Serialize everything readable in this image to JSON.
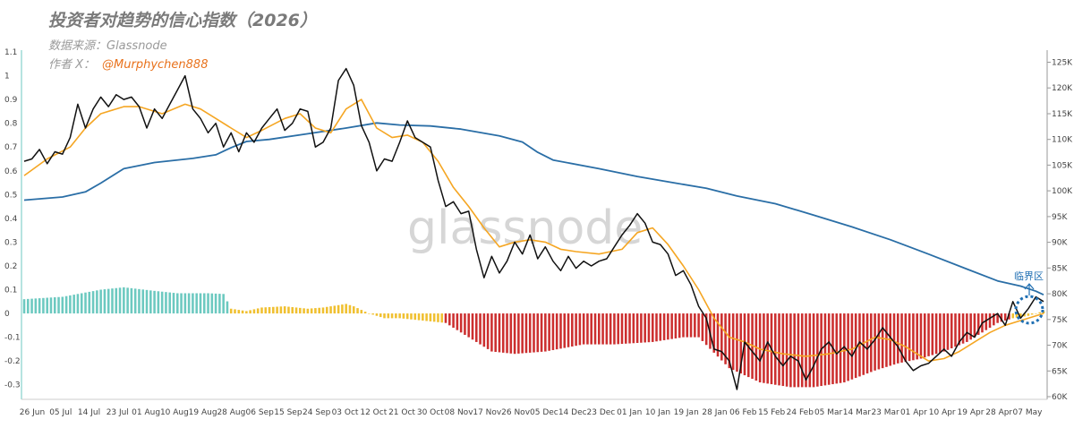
{
  "header": {
    "title": "投资者对趋势的信心指数（2026）",
    "source": "数据来源：Glassnode",
    "author_prefix": "作者 X：",
    "author_handle": "@Murphychen888"
  },
  "watermark": "glassnode",
  "colors": {
    "confidence": "#111111",
    "ema": "#f5a623",
    "price": "#2a6ea6",
    "hist_pos": "#6cc9c0",
    "hist_neutral": "#f0c030",
    "hist_neg": "#cc2f2f",
    "annotation": "#1f6fb3",
    "axis": "#999999"
  },
  "chart_data": {
    "type": "line",
    "title": "投资者对趋势的信心指数（2026）",
    "x_labels": [
      "26 Jun",
      "05 Jul",
      "14 Jul",
      "23 Jul",
      "01 Aug",
      "10 Aug",
      "19 Aug",
      "28 Aug",
      "06 Sep",
      "15 Sep",
      "24 Sep",
      "03 Oct",
      "12 Oct",
      "21 Oct",
      "30 Oct",
      "08 Nov",
      "17 Nov",
      "26 Nov",
      "05 Dec",
      "14 Dec",
      "23 Dec",
      "01 Jan",
      "10 Jan",
      "19 Jan",
      "28 Jan",
      "06 Feb",
      "15 Feb",
      "24 Feb",
      "05 Mar",
      "14 Mar",
      "23 Mar",
      "01 Apr",
      "10 Apr",
      "19 Apr",
      "28 Apr",
      "07 May"
    ],
    "y_left": {
      "min": -0.35,
      "max": 1.1,
      "ticks": [
        -0.3,
        -0.2,
        -0.1,
        0,
        0.1,
        0.2,
        0.3,
        0.4,
        0.5,
        0.6,
        0.7,
        0.8,
        0.9,
        1,
        1.1
      ]
    },
    "y_right": {
      "min": 60000,
      "max": 127000,
      "ticks": [
        "60K",
        "65K",
        "70K",
        "75K",
        "80K",
        "85K",
        "90K",
        "95K",
        "100K",
        "105K",
        "110K",
        "115K",
        "120K",
        "125K"
      ],
      "tick_values": [
        60000,
        65000,
        70000,
        75000,
        80000,
        85000,
        90000,
        95000,
        100000,
        105000,
        110000,
        115000,
        120000,
        125000
      ]
    },
    "grid": false,
    "annotation": "临界区",
    "series": [
      {
        "key": "confidence",
        "axis": "left",
        "knots": [
          [
            0,
            0.64
          ],
          [
            2,
            0.65
          ],
          [
            4,
            0.69
          ],
          [
            6,
            0.63
          ],
          [
            8,
            0.68
          ],
          [
            10,
            0.67
          ],
          [
            12,
            0.74
          ],
          [
            14,
            0.88
          ],
          [
            16,
            0.78
          ],
          [
            18,
            0.86
          ],
          [
            20,
            0.91
          ],
          [
            22,
            0.87
          ],
          [
            24,
            0.92
          ],
          [
            26,
            0.9
          ],
          [
            28,
            0.91
          ],
          [
            30,
            0.87
          ],
          [
            32,
            0.78
          ],
          [
            34,
            0.86
          ],
          [
            36,
            0.82
          ],
          [
            38,
            0.88
          ],
          [
            40,
            0.94
          ],
          [
            42,
            1.0
          ],
          [
            44,
            0.86
          ],
          [
            46,
            0.82
          ],
          [
            48,
            0.76
          ],
          [
            50,
            0.8
          ],
          [
            52,
            0.7
          ],
          [
            54,
            0.76
          ],
          [
            56,
            0.68
          ],
          [
            58,
            0.76
          ],
          [
            60,
            0.72
          ],
          [
            62,
            0.78
          ],
          [
            64,
            0.82
          ],
          [
            66,
            0.86
          ],
          [
            68,
            0.77
          ],
          [
            70,
            0.8
          ],
          [
            72,
            0.86
          ],
          [
            74,
            0.85
          ],
          [
            76,
            0.7
          ],
          [
            78,
            0.72
          ],
          [
            80,
            0.78
          ],
          [
            82,
            0.98
          ],
          [
            84,
            1.03
          ],
          [
            86,
            0.96
          ],
          [
            88,
            0.79
          ],
          [
            90,
            0.72
          ],
          [
            92,
            0.6
          ],
          [
            94,
            0.65
          ],
          [
            96,
            0.64
          ],
          [
            98,
            0.72
          ],
          [
            100,
            0.81
          ],
          [
            102,
            0.74
          ],
          [
            104,
            0.72
          ],
          [
            106,
            0.7
          ],
          [
            108,
            0.56
          ],
          [
            110,
            0.45
          ],
          [
            112,
            0.47
          ],
          [
            114,
            0.42
          ],
          [
            116,
            0.43
          ],
          [
            118,
            0.27
          ],
          [
            120,
            0.15
          ],
          [
            122,
            0.24
          ],
          [
            124,
            0.17
          ],
          [
            126,
            0.22
          ],
          [
            128,
            0.3
          ],
          [
            130,
            0.25
          ],
          [
            132,
            0.33
          ],
          [
            134,
            0.23
          ],
          [
            136,
            0.28
          ],
          [
            138,
            0.22
          ],
          [
            140,
            0.18
          ],
          [
            142,
            0.24
          ],
          [
            144,
            0.19
          ],
          [
            146,
            0.22
          ],
          [
            148,
            0.2
          ],
          [
            150,
            0.22
          ],
          [
            152,
            0.23
          ],
          [
            154,
            0.28
          ],
          [
            156,
            0.33
          ],
          [
            158,
            0.37
          ],
          [
            160,
            0.42
          ],
          [
            162,
            0.38
          ],
          [
            164,
            0.3
          ],
          [
            166,
            0.29
          ],
          [
            168,
            0.25
          ],
          [
            170,
            0.16
          ],
          [
            172,
            0.18
          ],
          [
            174,
            0.12
          ],
          [
            176,
            0.03
          ],
          [
            178,
            -0.02
          ],
          [
            180,
            -0.15
          ],
          [
            182,
            -0.16
          ],
          [
            184,
            -0.2
          ],
          [
            186,
            -0.32
          ],
          [
            188,
            -0.12
          ],
          [
            190,
            -0.16
          ],
          [
            192,
            -0.2
          ],
          [
            194,
            -0.12
          ],
          [
            196,
            -0.18
          ],
          [
            198,
            -0.22
          ],
          [
            200,
            -0.18
          ],
          [
            202,
            -0.2
          ],
          [
            204,
            -0.28
          ],
          [
            206,
            -0.22
          ],
          [
            208,
            -0.15
          ],
          [
            210,
            -0.12
          ],
          [
            212,
            -0.17
          ],
          [
            214,
            -0.14
          ],
          [
            216,
            -0.18
          ],
          [
            218,
            -0.12
          ],
          [
            220,
            -0.15
          ],
          [
            222,
            -0.11
          ],
          [
            224,
            -0.06
          ],
          [
            226,
            -0.1
          ],
          [
            228,
            -0.14
          ],
          [
            230,
            -0.2
          ],
          [
            232,
            -0.24
          ],
          [
            234,
            -0.22
          ],
          [
            236,
            -0.21
          ],
          [
            238,
            -0.18
          ],
          [
            240,
            -0.15
          ],
          [
            242,
            -0.18
          ],
          [
            244,
            -0.12
          ],
          [
            246,
            -0.08
          ],
          [
            248,
            -0.1
          ],
          [
            250,
            -0.04
          ],
          [
            252,
            -0.02
          ],
          [
            254,
            0.0
          ],
          [
            256,
            -0.05
          ],
          [
            258,
            0.05
          ],
          [
            260,
            -0.02
          ],
          [
            262,
            0.02
          ],
          [
            264,
            0.07
          ],
          [
            266,
            0.05
          ]
        ]
      },
      {
        "key": "ema",
        "axis": "left",
        "knots": [
          [
            0,
            0.58
          ],
          [
            6,
            0.65
          ],
          [
            12,
            0.7
          ],
          [
            16,
            0.78
          ],
          [
            20,
            0.84
          ],
          [
            26,
            0.87
          ],
          [
            30,
            0.87
          ],
          [
            36,
            0.84
          ],
          [
            42,
            0.88
          ],
          [
            46,
            0.86
          ],
          [
            50,
            0.82
          ],
          [
            54,
            0.78
          ],
          [
            58,
            0.74
          ],
          [
            62,
            0.77
          ],
          [
            68,
            0.82
          ],
          [
            72,
            0.84
          ],
          [
            76,
            0.78
          ],
          [
            80,
            0.76
          ],
          [
            84,
            0.86
          ],
          [
            88,
            0.9
          ],
          [
            92,
            0.78
          ],
          [
            96,
            0.74
          ],
          [
            100,
            0.75
          ],
          [
            104,
            0.72
          ],
          [
            108,
            0.64
          ],
          [
            112,
            0.53
          ],
          [
            116,
            0.45
          ],
          [
            120,
            0.36
          ],
          [
            124,
            0.28
          ],
          [
            128,
            0.3
          ],
          [
            132,
            0.31
          ],
          [
            136,
            0.3
          ],
          [
            140,
            0.27
          ],
          [
            144,
            0.26
          ],
          [
            150,
            0.25
          ],
          [
            156,
            0.27
          ],
          [
            160,
            0.34
          ],
          [
            164,
            0.36
          ],
          [
            168,
            0.29
          ],
          [
            172,
            0.2
          ],
          [
            176,
            0.1
          ],
          [
            180,
            -0.02
          ],
          [
            184,
            -0.1
          ],
          [
            188,
            -0.12
          ],
          [
            192,
            -0.15
          ],
          [
            198,
            -0.17
          ],
          [
            204,
            -0.18
          ],
          [
            210,
            -0.17
          ],
          [
            216,
            -0.15
          ],
          [
            222,
            -0.1
          ],
          [
            226,
            -0.11
          ],
          [
            230,
            -0.14
          ],
          [
            236,
            -0.2
          ],
          [
            240,
            -0.19
          ],
          [
            244,
            -0.16
          ],
          [
            248,
            -0.12
          ],
          [
            252,
            -0.08
          ],
          [
            256,
            -0.05
          ],
          [
            260,
            -0.03
          ],
          [
            266,
            0.0
          ]
        ]
      },
      {
        "key": "price",
        "axis": "right",
        "knots": [
          [
            0,
            98200
          ],
          [
            10,
            98800
          ],
          [
            16,
            99800
          ],
          [
            20,
            101500
          ],
          [
            26,
            104300
          ],
          [
            34,
            105500
          ],
          [
            44,
            106300
          ],
          [
            50,
            107000
          ],
          [
            54,
            108400
          ],
          [
            58,
            109600
          ],
          [
            64,
            110000
          ],
          [
            74,
            111100
          ],
          [
            84,
            112200
          ],
          [
            92,
            113200
          ],
          [
            98,
            112800
          ],
          [
            106,
            112600
          ],
          [
            114,
            112000
          ],
          [
            124,
            110700
          ],
          [
            130,
            109500
          ],
          [
            134,
            107500
          ],
          [
            138,
            106000
          ],
          [
            150,
            104300
          ],
          [
            160,
            102800
          ],
          [
            170,
            101500
          ],
          [
            178,
            100500
          ],
          [
            186,
            99000
          ],
          [
            196,
            97500
          ],
          [
            206,
            95300
          ],
          [
            216,
            93000
          ],
          [
            226,
            90500
          ],
          [
            236,
            87700
          ],
          [
            246,
            84800
          ],
          [
            254,
            82500
          ],
          [
            260,
            81500
          ],
          [
            264,
            80500
          ],
          [
            266,
            79800
          ]
        ]
      },
      {
        "key": "histogram",
        "axis": "left",
        "knots": [
          [
            0,
            0.06
          ],
          [
            10,
            0.07
          ],
          [
            20,
            0.1
          ],
          [
            26,
            0.11
          ],
          [
            34,
            0.095
          ],
          [
            40,
            0.085
          ],
          [
            48,
            0.085
          ],
          [
            52,
            0.082
          ],
          [
            54,
            0.02
          ],
          [
            58,
            0.01
          ],
          [
            62,
            0.025
          ],
          [
            68,
            0.03
          ],
          [
            74,
            0.02
          ],
          [
            78,
            0.025
          ],
          [
            82,
            0.035
          ],
          [
            84,
            0.04
          ],
          [
            86,
            0.03
          ],
          [
            90,
            0.0
          ],
          [
            94,
            -0.02
          ],
          [
            98,
            -0.02
          ],
          [
            104,
            -0.03
          ],
          [
            110,
            -0.04
          ],
          [
            116,
            -0.1
          ],
          [
            122,
            -0.16
          ],
          [
            128,
            -0.17
          ],
          [
            136,
            -0.16
          ],
          [
            146,
            -0.13
          ],
          [
            154,
            -0.13
          ],
          [
            164,
            -0.12
          ],
          [
            172,
            -0.1
          ],
          [
            176,
            -0.1
          ],
          [
            184,
            -0.23
          ],
          [
            192,
            -0.29
          ],
          [
            200,
            -0.31
          ],
          [
            206,
            -0.31
          ],
          [
            214,
            -0.29
          ],
          [
            222,
            -0.24
          ],
          [
            228,
            -0.21
          ],
          [
            234,
            -0.19
          ],
          [
            240,
            -0.16
          ],
          [
            246,
            -0.12
          ],
          [
            250,
            -0.08
          ],
          [
            254,
            -0.04
          ],
          [
            258,
            -0.02
          ],
          [
            262,
            -0.01
          ],
          [
            266,
            0.01
          ]
        ],
        "colors_by_range": [
          {
            "from": 0,
            "to": 53,
            "color": "hist_pos"
          },
          {
            "from": 54,
            "to": 109,
            "color": "hist_neutral"
          },
          {
            "from": 110,
            "to": 257,
            "color": "hist_neg"
          },
          {
            "from": 258,
            "to": 266,
            "color": "hist_neutral"
          }
        ]
      }
    ]
  }
}
